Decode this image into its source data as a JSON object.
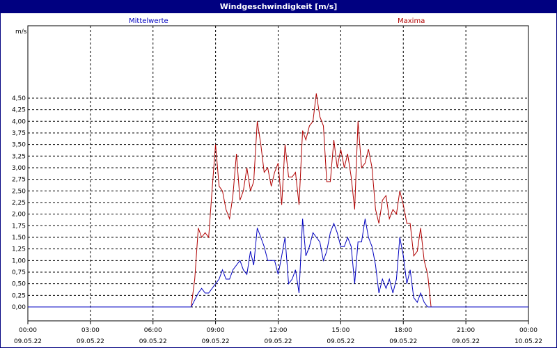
{
  "title": "Windgeschwindigkeit [m/s]",
  "colors": {
    "title_bg": "#000080",
    "mean": "#0000c0",
    "max": "#b00000",
    "grid": "#000000"
  },
  "chart_data": {
    "type": "line",
    "title": "Windgeschwindigkeit [m/s]",
    "ylabel": "m/s",
    "xlabel": "",
    "ylim": [
      0,
      4.75
    ],
    "xlim": [
      0,
      24
    ],
    "grid": true,
    "legend": "top",
    "y_ticks": [
      "0,00",
      "0,25",
      "0,50",
      "0,75",
      "1,00",
      "1,25",
      "1,50",
      "1,75",
      "2,00",
      "2,25",
      "2,50",
      "2,75",
      "3,00",
      "3,25",
      "3,50",
      "3,75",
      "4,00",
      "4,25",
      "4,50"
    ],
    "x_ticks": [
      {
        "time": "00:00",
        "date": "09.05.22"
      },
      {
        "time": "03:00",
        "date": "09.05.22"
      },
      {
        "time": "06:00",
        "date": "09.05.22"
      },
      {
        "time": "09:00",
        "date": "09.05.22"
      },
      {
        "time": "12:00",
        "date": "09.05.22"
      },
      {
        "time": "15:00",
        "date": "09.05.22"
      },
      {
        "time": "18:00",
        "date": "09.05.22"
      },
      {
        "time": "21:00",
        "date": "09.05.22"
      },
      {
        "time": "00:00",
        "date": "10.05.22"
      }
    ],
    "series": [
      {
        "name": "Mittelwerte",
        "color": "#0000c0",
        "points": [
          [
            0,
            0
          ],
          [
            7.67,
            0
          ],
          [
            7.83,
            0
          ],
          [
            8.17,
            0.3
          ],
          [
            8.33,
            0.4
          ],
          [
            8.5,
            0.3
          ],
          [
            8.67,
            0.3
          ],
          [
            9.0,
            0.5
          ],
          [
            9.17,
            0.6
          ],
          [
            9.33,
            0.8
          ],
          [
            9.5,
            0.6
          ],
          [
            9.67,
            0.6
          ],
          [
            9.83,
            0.8
          ],
          [
            10.0,
            0.9
          ],
          [
            10.17,
            1.0
          ],
          [
            10.33,
            0.8
          ],
          [
            10.5,
            0.7
          ],
          [
            10.67,
            1.2
          ],
          [
            10.83,
            0.9
          ],
          [
            11.0,
            1.7
          ],
          [
            11.17,
            1.5
          ],
          [
            11.33,
            1.3
          ],
          [
            11.5,
            1.0
          ],
          [
            11.67,
            1.0
          ],
          [
            11.83,
            1.0
          ],
          [
            12.0,
            0.7
          ],
          [
            12.17,
            1.1
          ],
          [
            12.33,
            1.5
          ],
          [
            12.5,
            0.5
          ],
          [
            12.67,
            0.6
          ],
          [
            12.83,
            0.8
          ],
          [
            13.0,
            0.3
          ],
          [
            13.17,
            1.9
          ],
          [
            13.33,
            1.1
          ],
          [
            13.5,
            1.3
          ],
          [
            13.67,
            1.6
          ],
          [
            13.83,
            1.5
          ],
          [
            14.0,
            1.4
          ],
          [
            14.17,
            1.0
          ],
          [
            14.33,
            1.2
          ],
          [
            14.5,
            1.6
          ],
          [
            14.67,
            1.8
          ],
          [
            14.83,
            1.6
          ],
          [
            15.0,
            1.3
          ],
          [
            15.17,
            1.3
          ],
          [
            15.33,
            1.5
          ],
          [
            15.5,
            1.3
          ],
          [
            15.67,
            0.5
          ],
          [
            15.83,
            1.4
          ],
          [
            16.0,
            1.4
          ],
          [
            16.17,
            1.9
          ],
          [
            16.33,
            1.5
          ],
          [
            16.5,
            1.3
          ],
          [
            16.67,
            0.9
          ],
          [
            16.83,
            0.3
          ],
          [
            17.0,
            0.6
          ],
          [
            17.17,
            0.4
          ],
          [
            17.33,
            0.6
          ],
          [
            17.5,
            0.3
          ],
          [
            17.67,
            0.6
          ],
          [
            17.83,
            1.5
          ],
          [
            18.0,
            1.1
          ],
          [
            18.17,
            0.5
          ],
          [
            18.33,
            0.8
          ],
          [
            18.5,
            0.2
          ],
          [
            18.67,
            0.1
          ],
          [
            18.83,
            0.3
          ],
          [
            19.0,
            0.1
          ],
          [
            19.17,
            0
          ],
          [
            19.5,
            0
          ],
          [
            24,
            0
          ]
        ]
      },
      {
        "name": "Maxima",
        "color": "#b00000",
        "points": [
          [
            0,
            0
          ],
          [
            7.67,
            0
          ],
          [
            7.83,
            0
          ],
          [
            8.0,
            0.6
          ],
          [
            8.17,
            1.7
          ],
          [
            8.33,
            1.5
          ],
          [
            8.5,
            1.6
          ],
          [
            8.67,
            1.5
          ],
          [
            8.83,
            2.5
          ],
          [
            9.0,
            3.5
          ],
          [
            9.17,
            2.6
          ],
          [
            9.33,
            2.5
          ],
          [
            9.5,
            2.1
          ],
          [
            9.67,
            1.9
          ],
          [
            9.83,
            2.4
          ],
          [
            10.0,
            3.3
          ],
          [
            10.17,
            2.3
          ],
          [
            10.33,
            2.5
          ],
          [
            10.5,
            3.0
          ],
          [
            10.67,
            2.5
          ],
          [
            10.83,
            2.7
          ],
          [
            11.0,
            4.0
          ],
          [
            11.17,
            3.5
          ],
          [
            11.33,
            2.9
          ],
          [
            11.5,
            3.0
          ],
          [
            11.67,
            2.6
          ],
          [
            11.83,
            2.9
          ],
          [
            12.0,
            3.1
          ],
          [
            12.17,
            2.2
          ],
          [
            12.33,
            3.5
          ],
          [
            12.5,
            2.8
          ],
          [
            12.67,
            2.8
          ],
          [
            12.83,
            2.9
          ],
          [
            13.0,
            2.2
          ],
          [
            13.17,
            3.8
          ],
          [
            13.33,
            3.6
          ],
          [
            13.5,
            3.9
          ],
          [
            13.67,
            4.0
          ],
          [
            13.83,
            4.6
          ],
          [
            14.0,
            4.1
          ],
          [
            14.17,
            3.9
          ],
          [
            14.33,
            2.7
          ],
          [
            14.5,
            2.7
          ],
          [
            14.67,
            3.6
          ],
          [
            14.83,
            3.0
          ],
          [
            15.0,
            3.4
          ],
          [
            15.17,
            3.0
          ],
          [
            15.33,
            3.3
          ],
          [
            15.5,
            2.8
          ],
          [
            15.67,
            2.1
          ],
          [
            15.83,
            4.0
          ],
          [
            16.0,
            3.0
          ],
          [
            16.17,
            3.1
          ],
          [
            16.33,
            3.4
          ],
          [
            16.5,
            3.0
          ],
          [
            16.67,
            2.1
          ],
          [
            16.83,
            1.8
          ],
          [
            17.0,
            2.3
          ],
          [
            17.17,
            2.4
          ],
          [
            17.33,
            1.9
          ],
          [
            17.5,
            2.1
          ],
          [
            17.67,
            2.0
          ],
          [
            17.83,
            2.5
          ],
          [
            18.0,
            2.2
          ],
          [
            18.17,
            1.8
          ],
          [
            18.33,
            1.8
          ],
          [
            18.5,
            1.1
          ],
          [
            18.67,
            1.2
          ],
          [
            18.83,
            1.7
          ],
          [
            19.0,
            1.0
          ],
          [
            19.17,
            0.7
          ],
          [
            19.33,
            0
          ],
          [
            19.5,
            0
          ],
          [
            24,
            0
          ]
        ]
      }
    ]
  }
}
